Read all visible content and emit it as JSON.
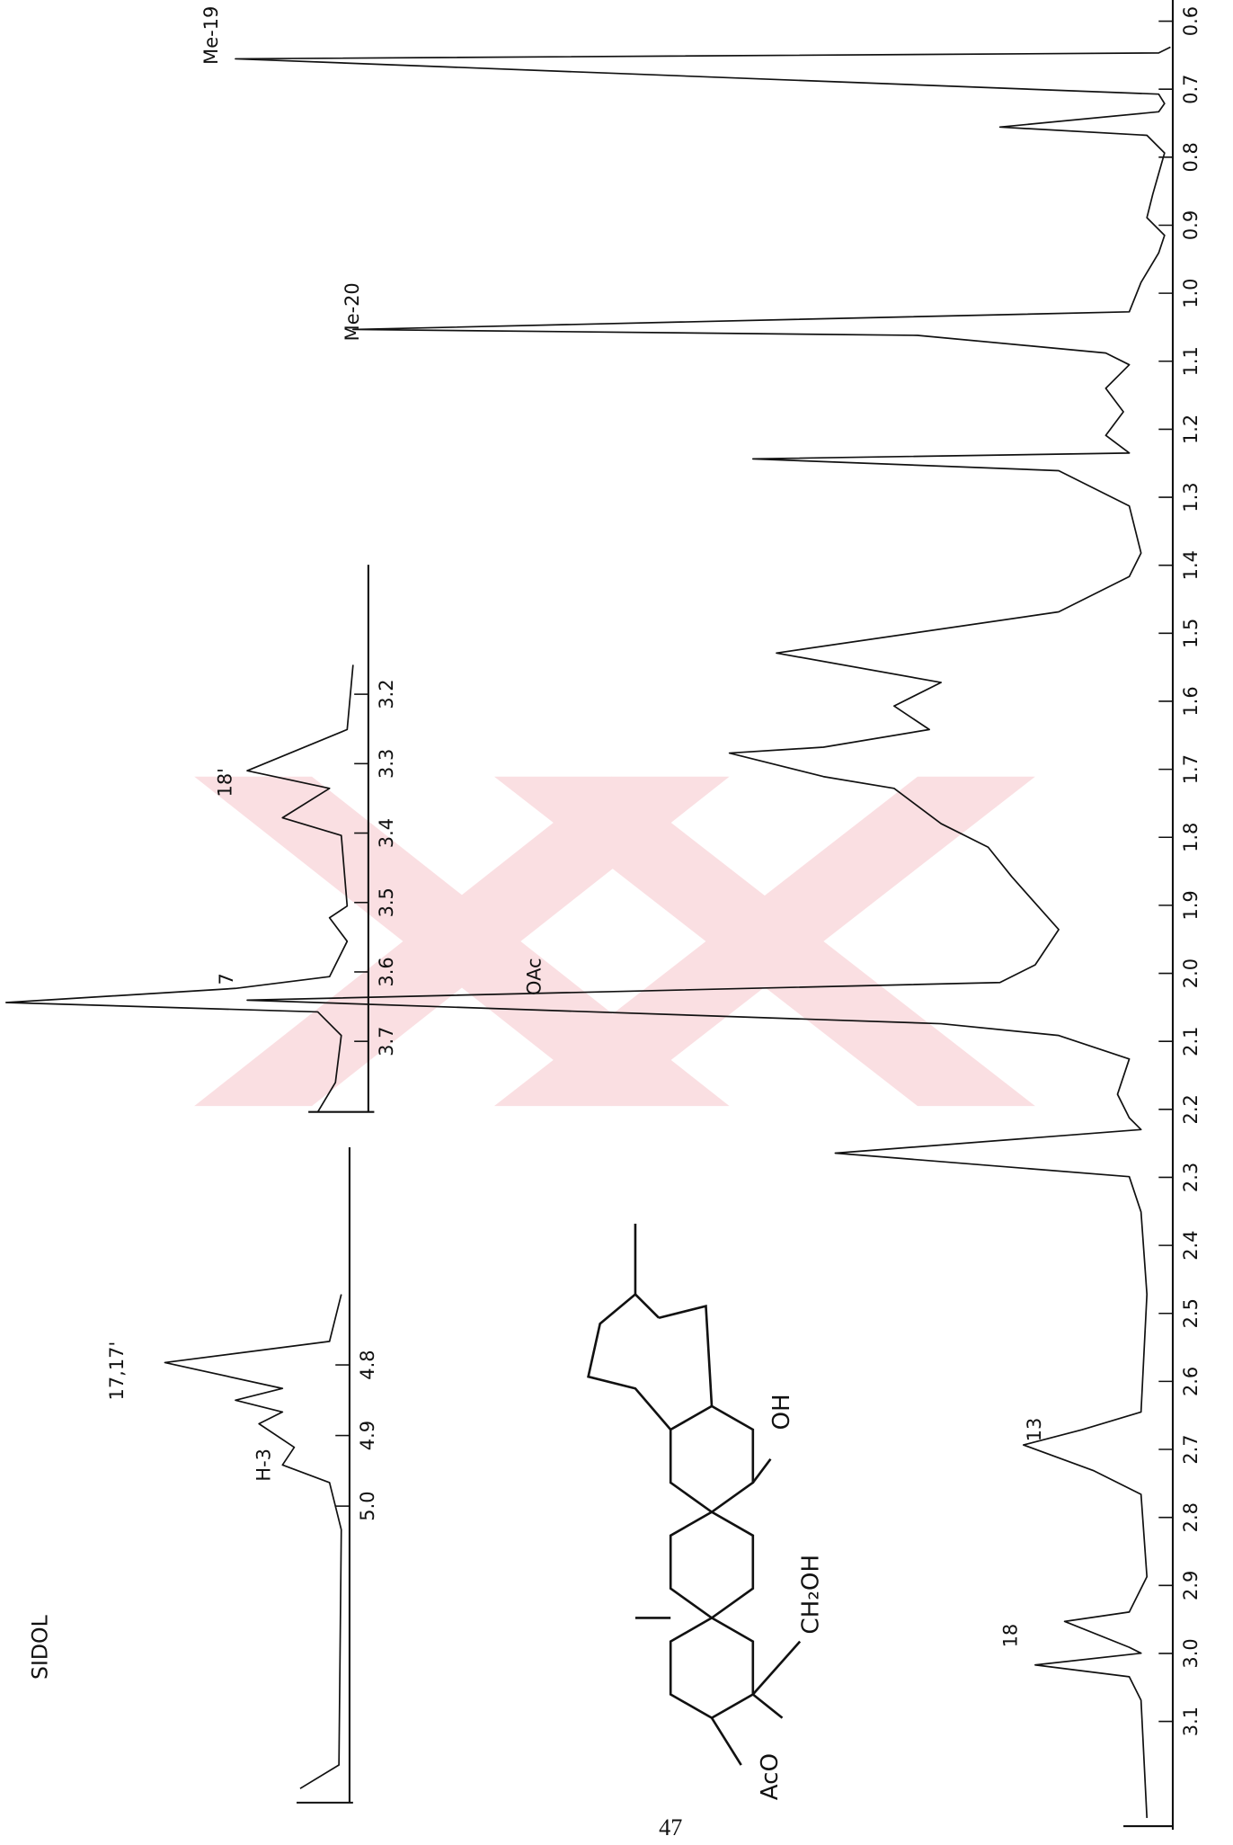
{
  "header": {
    "title": "SIDOL"
  },
  "page_number": "47",
  "peak_labels": {
    "me19": "Me-19",
    "me20": "Me-20",
    "oac": "OAc",
    "h7": "7",
    "h18prime": "18'",
    "h17": "17,17'",
    "h3": "H-3",
    "h13": "13",
    "h18": "18"
  },
  "structure": {
    "acetoxy": "AcO",
    "hydroxy": "OH",
    "hydroxymethyl": "CH₂OH"
  },
  "axes": {
    "main_ticks": [
      "0.6",
      "0.7",
      "0.8",
      "0.9",
      "1.0",
      "1.1",
      "1.2",
      "1.3",
      "1.4",
      "1.5",
      "1.6",
      "1.7",
      "1.8",
      "1.9",
      "2.0",
      "2.1",
      "2.2",
      "2.3",
      "2.4",
      "2.5",
      "2.6",
      "2.7",
      "2.8",
      "2.9",
      "3.0",
      "3.1"
    ],
    "inset1_ticks": [
      "3.2",
      "3.3",
      "3.4",
      "3.5",
      "3.6",
      "3.7"
    ],
    "inset2_ticks": [
      "4.8",
      "4.9",
      "5.0"
    ]
  }
}
